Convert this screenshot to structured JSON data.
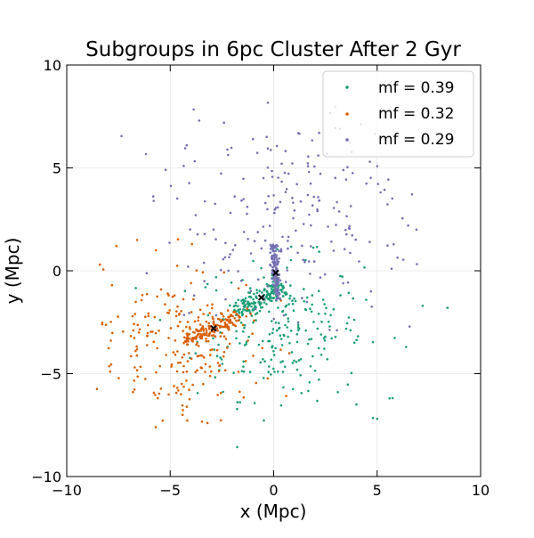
{
  "chart_data": {
    "type": "scatter",
    "title": "Subgroups in 6pc Cluster After 2 Gyr",
    "xlabel": "x (Mpc)",
    "ylabel": "y (Mpc)",
    "xlim": [
      -10,
      10
    ],
    "ylim": [
      -10,
      10
    ],
    "x_ticks": [
      -10,
      -5,
      0,
      5,
      10
    ],
    "y_ticks": [
      -10,
      -5,
      0,
      5,
      10
    ],
    "x_tick_labels": [
      "−10",
      "−5",
      "0",
      "5",
      "10"
    ],
    "y_tick_labels": [
      "−10",
      "−5",
      "0",
      "5",
      "10"
    ],
    "grid": true,
    "legend_position": "top-right",
    "series": [
      {
        "name": "mf = 0.39",
        "color": "#1b9e77",
        "center": [
          -0.6,
          -1.3
        ],
        "count": 380,
        "stream_spread": 0.5,
        "stream_angle_deg": 32,
        "stream_length": [
          -1.5,
          1.2
        ],
        "halo_center": [
          0.3,
          -2.8
        ],
        "halo_spread": [
          2.0,
          1.7
        ],
        "outliers": [
          [
            8.4,
            -1.8
          ],
          [
            7.2,
            -1.7
          ],
          [
            6.4,
            -3.7
          ],
          [
            5.6,
            -6.2
          ],
          [
            5.0,
            -7.2
          ],
          [
            4.0,
            -6.5
          ],
          [
            3.1,
            -5.9
          ]
        ]
      },
      {
        "name": "mf = 0.32",
        "color": "#d95f02",
        "center": [
          -2.9,
          -2.8
        ],
        "count": 360,
        "stream_spread": 0.45,
        "stream_angle_deg": 25,
        "stream_length": [
          -1.5,
          1.4
        ],
        "halo_center": [
          -4.5,
          -3.5
        ],
        "halo_spread": [
          1.9,
          1.8
        ],
        "outliers": [
          [
            -8.4,
            0.3
          ],
          [
            -7.6,
            1.2
          ],
          [
            -7.9,
            -4.9
          ],
          [
            -5.7,
            -7.6
          ],
          [
            -4.4,
            -7.0
          ],
          [
            -3.2,
            -7.4
          ],
          [
            -6.6,
            1.5
          ]
        ]
      },
      {
        "name": "mf = 0.29",
        "color": "#7570b3",
        "center": [
          0.1,
          -0.1
        ],
        "count": 330,
        "stream_spread": 0.22,
        "stream_angle_deg": 95,
        "stream_length": [
          -1.3,
          1.4
        ],
        "halo_center": [
          0.5,
          2.5
        ],
        "halo_spread": [
          3.0,
          2.4
        ],
        "outliers": [
          [
            -3.6,
            7.3
          ],
          [
            -2.4,
            7.2
          ],
          [
            -4.2,
            6.1
          ],
          [
            -5.8,
            3.4
          ],
          [
            3.2,
            6.9
          ],
          [
            2.2,
            6.7
          ],
          [
            6.5,
            2.2
          ],
          [
            5.7,
            0.1
          ],
          [
            4.7,
            -1.0
          ],
          [
            6.9,
            2.0
          ],
          [
            -1.0,
            6.4
          ]
        ]
      }
    ]
  }
}
